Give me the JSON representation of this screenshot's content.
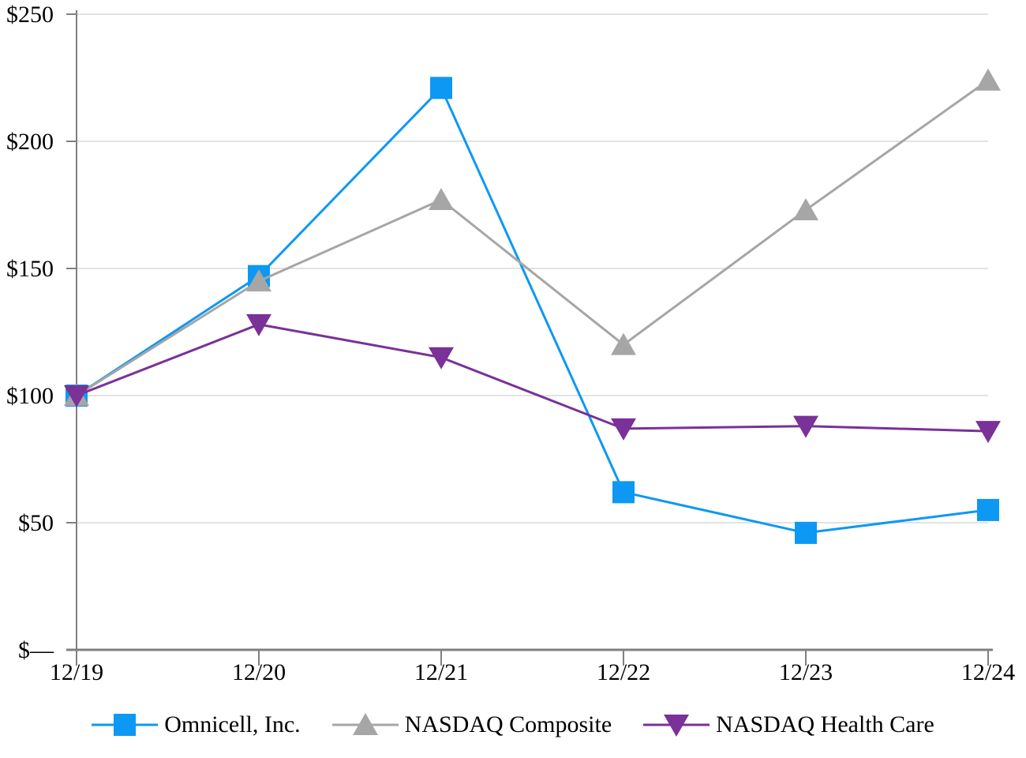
{
  "chart_data": {
    "type": "line",
    "title": "",
    "xlabel": "",
    "ylabel": "",
    "x_labels": [
      "12/19",
      "12/20",
      "12/21",
      "12/22",
      "12/23",
      "12/24"
    ],
    "ylim": [
      0,
      250
    ],
    "y_ticks": [
      {
        "value": 0,
        "label": "$—"
      },
      {
        "value": 50,
        "label": "$50"
      },
      {
        "value": 100,
        "label": "$100"
      },
      {
        "value": 150,
        "label": "$150"
      },
      {
        "value": 200,
        "label": "$200"
      },
      {
        "value": 250,
        "label": "$250"
      }
    ],
    "grid": "horizontal",
    "legend_position": "bottom",
    "series": [
      {
        "name": "Omnicell, Inc.",
        "marker": "square",
        "color": "#0d98f4",
        "values": [
          100,
          147,
          221,
          62,
          46,
          55
        ]
      },
      {
        "name": "NASDAQ Composite",
        "marker": "triangle-up",
        "color": "#a6a6a6",
        "values": [
          100,
          145,
          177,
          120,
          173,
          224
        ]
      },
      {
        "name": "NASDAQ Health Care",
        "marker": "triangle-down",
        "color": "#7a3198",
        "values": [
          100,
          128,
          115,
          87,
          88,
          86
        ]
      }
    ],
    "colors": {
      "axis": "#808080",
      "gridline": "#e3e3e3",
      "text": "#000000",
      "background": "#ffffff"
    }
  }
}
